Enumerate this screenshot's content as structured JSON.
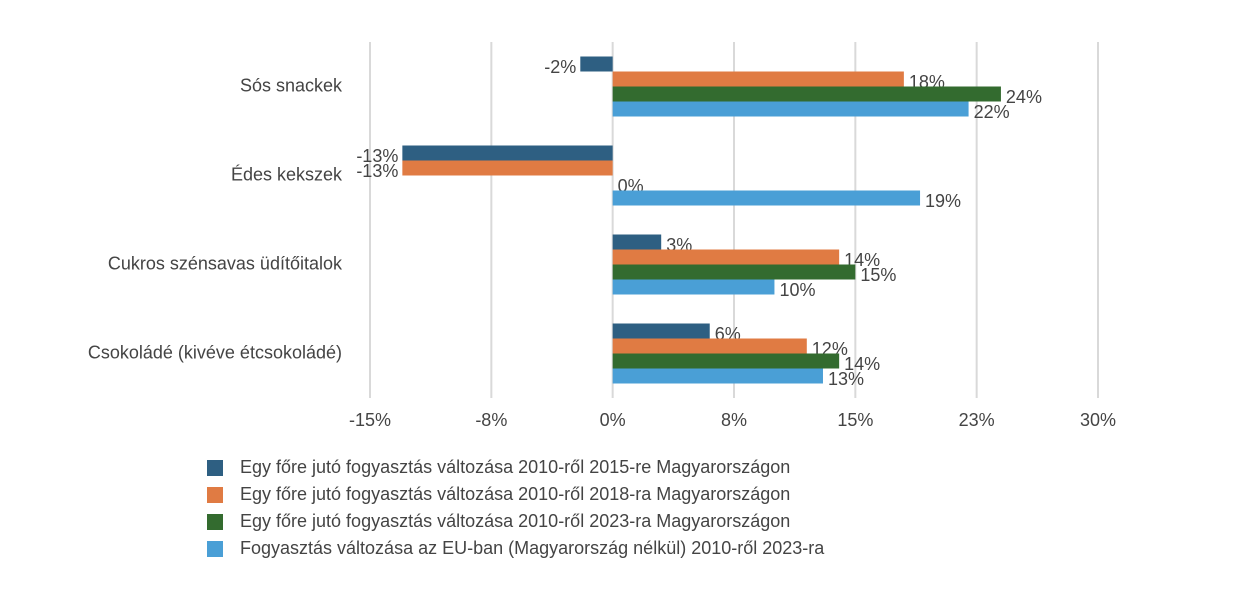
{
  "chart_data": {
    "type": "hbar",
    "categories": [
      "Sós snackek",
      "Édes kekszek",
      "Cukros szénsavas üdítőitalok",
      "Csokoládé (kivéve étcsokoládé)"
    ],
    "series": [
      {
        "name": "Egy főre jutó fogyasztás változása 2010-ről 2015-re Magyarországon",
        "color": "#2e5f82",
        "values": [
          -2,
          -13,
          3,
          6
        ],
        "value_labels": [
          "-2%",
          "-13%",
          "3%",
          "6%"
        ]
      },
      {
        "name": "Egy főre jutó fogyasztás változása 2010-ről 2018-ra Magyarországon",
        "color": "#e07b43",
        "values": [
          18,
          -13,
          14,
          12
        ],
        "value_labels": [
          "18%",
          "-13%",
          "14%",
          "12%"
        ]
      },
      {
        "name": "Egy főre jutó fogyasztás változása 2010-ről 2023-ra Magyarországon",
        "color": "#336b2f",
        "values": [
          24,
          0,
          15,
          14
        ],
        "value_labels": [
          "24%",
          "0%",
          "15%",
          "14%"
        ]
      },
      {
        "name": "Fogyasztás változása az EU-ban (Magyarország nélkül) 2010-ről 2023-ra",
        "color": "#4a9fd6",
        "values": [
          22,
          19,
          10,
          13
        ],
        "value_labels": [
          "22%",
          "19%",
          "10%",
          "13%"
        ]
      }
    ],
    "xlim": [
      -15,
      30
    ],
    "xticks": [
      {
        "value": -15,
        "label": "-15%"
      },
      {
        "value": -7.5,
        "label": "-8%"
      },
      {
        "value": 0,
        "label": "0%"
      },
      {
        "value": 7.5,
        "label": "8%"
      },
      {
        "value": 15,
        "label": "15%"
      },
      {
        "value": 22.5,
        "label": "23%"
      },
      {
        "value": 30,
        "label": "30%"
      }
    ],
    "grid": true
  }
}
